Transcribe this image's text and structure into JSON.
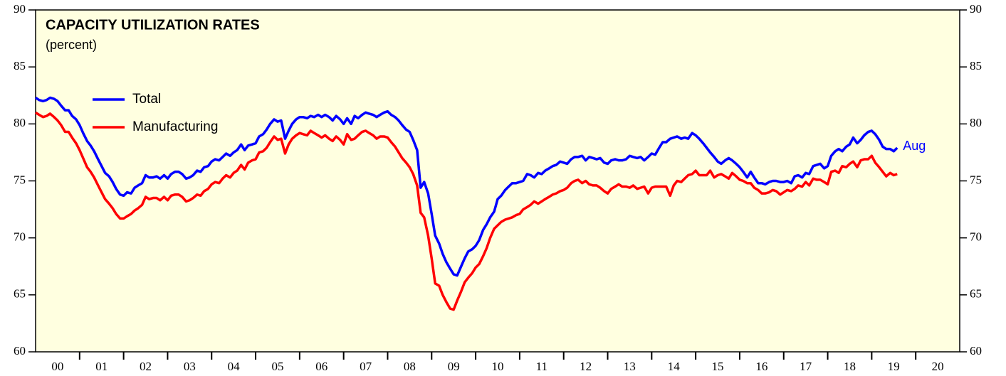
{
  "chart_data": {
    "type": "line",
    "title": "CAPACITY UTILIZATION RATES",
    "subtitle": "(percent)",
    "annotation": "Aug",
    "x": [
      2000.0,
      2000.08,
      2000.17,
      2000.25,
      2000.33,
      2000.42,
      2000.5,
      2000.58,
      2000.67,
      2000.75,
      2000.83,
      2000.92,
      2001.0,
      2001.08,
      2001.17,
      2001.25,
      2001.33,
      2001.42,
      2001.5,
      2001.58,
      2001.67,
      2001.75,
      2001.83,
      2001.92,
      2002.0,
      2002.08,
      2002.17,
      2002.25,
      2002.33,
      2002.42,
      2002.5,
      2002.58,
      2002.67,
      2002.75,
      2002.83,
      2002.92,
      2003.0,
      2003.08,
      2003.17,
      2003.25,
      2003.33,
      2003.42,
      2003.5,
      2003.58,
      2003.67,
      2003.75,
      2003.83,
      2003.92,
      2004.0,
      2004.08,
      2004.17,
      2004.25,
      2004.33,
      2004.42,
      2004.5,
      2004.58,
      2004.67,
      2004.75,
      2004.83,
      2004.92,
      2005.0,
      2005.08,
      2005.17,
      2005.25,
      2005.33,
      2005.42,
      2005.5,
      2005.58,
      2005.67,
      2005.75,
      2005.83,
      2005.92,
      2006.0,
      2006.08,
      2006.17,
      2006.25,
      2006.33,
      2006.42,
      2006.5,
      2006.58,
      2006.67,
      2006.75,
      2006.83,
      2006.92,
      2007.0,
      2007.08,
      2007.17,
      2007.25,
      2007.33,
      2007.42,
      2007.5,
      2007.58,
      2007.67,
      2007.75,
      2007.83,
      2007.92,
      2008.0,
      2008.08,
      2008.17,
      2008.25,
      2008.33,
      2008.42,
      2008.5,
      2008.58,
      2008.67,
      2008.75,
      2008.83,
      2008.92,
      2009.0,
      2009.08,
      2009.17,
      2009.25,
      2009.33,
      2009.42,
      2009.5,
      2009.58,
      2009.67,
      2009.75,
      2009.83,
      2009.92,
      2010.0,
      2010.08,
      2010.17,
      2010.25,
      2010.33,
      2010.42,
      2010.5,
      2010.58,
      2010.67,
      2010.75,
      2010.83,
      2010.92,
      2011.0,
      2011.08,
      2011.17,
      2011.25,
      2011.33,
      2011.42,
      2011.5,
      2011.58,
      2011.67,
      2011.75,
      2011.83,
      2011.92,
      2012.0,
      2012.08,
      2012.17,
      2012.25,
      2012.33,
      2012.42,
      2012.5,
      2012.58,
      2012.67,
      2012.75,
      2012.83,
      2012.92,
      2013.0,
      2013.08,
      2013.17,
      2013.25,
      2013.33,
      2013.42,
      2013.5,
      2013.58,
      2013.67,
      2013.75,
      2013.83,
      2013.92,
      2014.0,
      2014.08,
      2014.17,
      2014.25,
      2014.33,
      2014.42,
      2014.5,
      2014.58,
      2014.67,
      2014.75,
      2014.83,
      2014.92,
      2015.0,
      2015.08,
      2015.17,
      2015.25,
      2015.33,
      2015.42,
      2015.5,
      2015.58,
      2015.67,
      2015.75,
      2015.83,
      2015.92,
      2016.0,
      2016.08,
      2016.17,
      2016.25,
      2016.33,
      2016.42,
      2016.5,
      2016.58,
      2016.67,
      2016.75,
      2016.83,
      2016.92,
      2017.0,
      2017.08,
      2017.17,
      2017.25,
      2017.33,
      2017.42,
      2017.5,
      2017.58,
      2017.67,
      2017.75,
      2017.83,
      2017.92,
      2018.0,
      2018.08,
      2018.17,
      2018.25,
      2018.33,
      2018.42,
      2018.5,
      2018.58,
      2018.67,
      2018.75,
      2018.83,
      2018.92,
      2019.0,
      2019.08,
      2019.17,
      2019.25,
      2019.33,
      2019.42,
      2019.5,
      2019.58
    ],
    "series": [
      {
        "name": "Total",
        "color": "#0000ff",
        "values": [
          82.3,
          82.1,
          82.0,
          82.1,
          82.3,
          82.2,
          82.0,
          81.6,
          81.2,
          81.2,
          80.7,
          80.4,
          79.9,
          79.2,
          78.5,
          78.1,
          77.6,
          76.9,
          76.3,
          75.7,
          75.4,
          74.9,
          74.3,
          73.8,
          73.7,
          74.0,
          73.9,
          74.4,
          74.6,
          74.8,
          75.5,
          75.3,
          75.3,
          75.4,
          75.2,
          75.5,
          75.2,
          75.6,
          75.8,
          75.8,
          75.6,
          75.2,
          75.3,
          75.5,
          75.9,
          75.8,
          76.2,
          76.3,
          76.7,
          76.9,
          76.8,
          77.1,
          77.4,
          77.2,
          77.5,
          77.7,
          78.2,
          77.7,
          78.1,
          78.2,
          78.3,
          78.9,
          79.1,
          79.5,
          80.0,
          80.4,
          80.2,
          80.3,
          78.7,
          79.4,
          80.0,
          80.4,
          80.6,
          80.6,
          80.5,
          80.7,
          80.6,
          80.8,
          80.6,
          80.8,
          80.6,
          80.3,
          80.7,
          80.4,
          80.0,
          80.5,
          80.0,
          80.7,
          80.5,
          80.8,
          81.0,
          80.9,
          80.8,
          80.6,
          80.8,
          81.0,
          81.1,
          80.8,
          80.6,
          80.3,
          79.9,
          79.5,
          79.3,
          78.6,
          77.7,
          74.4,
          74.9,
          73.9,
          72.1,
          70.2,
          69.5,
          68.6,
          67.9,
          67.3,
          66.8,
          66.7,
          67.5,
          68.2,
          68.8,
          69.0,
          69.3,
          69.8,
          70.7,
          71.2,
          71.8,
          72.3,
          73.4,
          73.7,
          74.2,
          74.5,
          74.8,
          74.8,
          74.9,
          75.0,
          75.6,
          75.5,
          75.3,
          75.7,
          75.6,
          75.9,
          76.1,
          76.3,
          76.4,
          76.7,
          76.6,
          76.5,
          76.9,
          77.1,
          77.1,
          77.2,
          76.8,
          77.1,
          77.0,
          76.9,
          77.0,
          76.6,
          76.5,
          76.8,
          76.9,
          76.8,
          76.8,
          76.9,
          77.2,
          77.1,
          77.0,
          77.1,
          76.8,
          77.1,
          77.4,
          77.3,
          77.9,
          78.4,
          78.4,
          78.7,
          78.8,
          78.9,
          78.7,
          78.8,
          78.7,
          79.2,
          79.0,
          78.7,
          78.3,
          77.9,
          77.5,
          77.1,
          76.7,
          76.5,
          76.8,
          77.0,
          76.8,
          76.5,
          76.2,
          75.8,
          75.3,
          75.8,
          75.3,
          74.8,
          74.8,
          74.7,
          74.9,
          75.0,
          75.0,
          74.9,
          74.9,
          75.0,
          74.8,
          75.4,
          75.5,
          75.3,
          75.7,
          75.6,
          76.3,
          76.4,
          76.5,
          76.1,
          76.3,
          77.2,
          77.6,
          77.8,
          77.6,
          78.0,
          78.2,
          78.8,
          78.3,
          78.6,
          79.0,
          79.3,
          79.4,
          79.1,
          78.6,
          78.0,
          77.8,
          77.8,
          77.6,
          77.9
        ]
      },
      {
        "name": "Manufacturing",
        "color": "#ff0000",
        "values": [
          81.0,
          80.8,
          80.6,
          80.7,
          80.9,
          80.6,
          80.3,
          79.9,
          79.3,
          79.3,
          78.8,
          78.3,
          77.7,
          77.0,
          76.2,
          75.8,
          75.3,
          74.6,
          74.0,
          73.4,
          73.0,
          72.6,
          72.1,
          71.7,
          71.7,
          71.9,
          72.1,
          72.4,
          72.6,
          72.9,
          73.6,
          73.4,
          73.5,
          73.5,
          73.3,
          73.6,
          73.3,
          73.7,
          73.8,
          73.8,
          73.6,
          73.2,
          73.3,
          73.5,
          73.8,
          73.7,
          74.1,
          74.3,
          74.7,
          74.9,
          74.8,
          75.2,
          75.5,
          75.3,
          75.7,
          75.9,
          76.4,
          76.0,
          76.6,
          76.8,
          76.9,
          77.5,
          77.6,
          77.9,
          78.4,
          78.9,
          78.6,
          78.7,
          77.4,
          78.2,
          78.7,
          79.0,
          79.2,
          79.1,
          79.0,
          79.4,
          79.2,
          79.0,
          78.8,
          79.0,
          78.7,
          78.5,
          78.9,
          78.6,
          78.2,
          79.1,
          78.6,
          78.7,
          79.0,
          79.3,
          79.4,
          79.2,
          79.0,
          78.7,
          78.9,
          78.9,
          78.8,
          78.4,
          78.0,
          77.5,
          77.0,
          76.6,
          76.2,
          75.6,
          74.6,
          72.2,
          71.8,
          70.2,
          68.2,
          66.0,
          65.8,
          65.0,
          64.4,
          63.8,
          63.7,
          64.5,
          65.3,
          66.1,
          66.5,
          66.9,
          67.4,
          67.7,
          68.4,
          69.1,
          70.0,
          70.8,
          71.1,
          71.4,
          71.6,
          71.7,
          71.8,
          72.0,
          72.1,
          72.5,
          72.7,
          72.9,
          73.2,
          73.0,
          73.2,
          73.4,
          73.6,
          73.8,
          73.9,
          74.1,
          74.2,
          74.4,
          74.8,
          75.0,
          75.1,
          74.8,
          75.0,
          74.7,
          74.6,
          74.6,
          74.4,
          74.1,
          73.9,
          74.3,
          74.5,
          74.7,
          74.5,
          74.5,
          74.4,
          74.6,
          74.3,
          74.4,
          74.5,
          73.9,
          74.4,
          74.5,
          74.5,
          74.5,
          74.5,
          73.7,
          74.6,
          75.0,
          74.9,
          75.2,
          75.5,
          75.6,
          75.9,
          75.5,
          75.5,
          75.5,
          75.9,
          75.3,
          75.5,
          75.6,
          75.4,
          75.2,
          75.7,
          75.4,
          75.1,
          75.0,
          74.8,
          74.8,
          74.4,
          74.2,
          73.9,
          73.9,
          74.0,
          74.2,
          74.1,
          73.8,
          74.0,
          74.2,
          74.1,
          74.3,
          74.6,
          74.5,
          74.9,
          74.6,
          75.2,
          75.1,
          75.1,
          74.9,
          74.7,
          75.8,
          75.9,
          75.7,
          76.3,
          76.2,
          76.5,
          76.7,
          76.2,
          76.8,
          76.9,
          76.9,
          77.2,
          76.6,
          76.2,
          75.8,
          75.4,
          75.7,
          75.5,
          75.6
        ]
      }
    ],
    "xlim": [
      2000,
      2021
    ],
    "xticks": [
      {
        "value": 2000.5,
        "label": "00"
      },
      {
        "value": 2001.5,
        "label": "01"
      },
      {
        "value": 2002.5,
        "label": "02"
      },
      {
        "value": 2003.5,
        "label": "03"
      },
      {
        "value": 2004.5,
        "label": "04"
      },
      {
        "value": 2005.5,
        "label": "05"
      },
      {
        "value": 2006.5,
        "label": "06"
      },
      {
        "value": 2007.5,
        "label": "07"
      },
      {
        "value": 2008.5,
        "label": "08"
      },
      {
        "value": 2009.5,
        "label": "09"
      },
      {
        "value": 2010.5,
        "label": "10"
      },
      {
        "value": 2011.5,
        "label": "11"
      },
      {
        "value": 2012.5,
        "label": "12"
      },
      {
        "value": 2013.5,
        "label": "13"
      },
      {
        "value": 2014.5,
        "label": "14"
      },
      {
        "value": 2015.5,
        "label": "15"
      },
      {
        "value": 2016.5,
        "label": "16"
      },
      {
        "value": 2017.5,
        "label": "17"
      },
      {
        "value": 2018.5,
        "label": "18"
      },
      {
        "value": 2019.5,
        "label": "19"
      },
      {
        "value": 2020.5,
        "label": "20"
      }
    ],
    "ylim": [
      60,
      90
    ],
    "yticks": [
      60,
      65,
      70,
      75,
      80,
      85,
      90
    ],
    "grid": false,
    "legend": "upper left",
    "background": "#ffffe0"
  }
}
